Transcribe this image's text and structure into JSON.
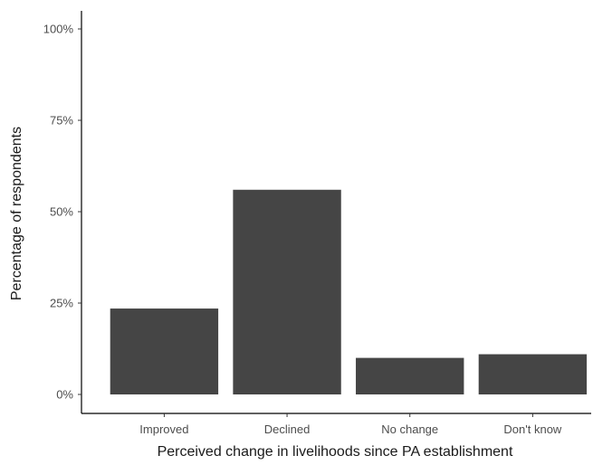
{
  "chart_data": {
    "type": "bar",
    "categories": [
      "Improved",
      "Declined",
      "No change",
      "Don't know"
    ],
    "values": [
      23.5,
      56.0,
      10.0,
      11.0
    ],
    "xlabel": "Perceived change in livelihoods since PA establishment",
    "ylabel": "Percentage of respondents",
    "ylim": [
      0,
      100
    ],
    "yticks": [
      0,
      25,
      50,
      75,
      100
    ],
    "ytick_labels": [
      "0%",
      "25%",
      "50%",
      "75%",
      "100%"
    ],
    "bar_color": "#454545",
    "grid": false,
    "legend": "none"
  }
}
